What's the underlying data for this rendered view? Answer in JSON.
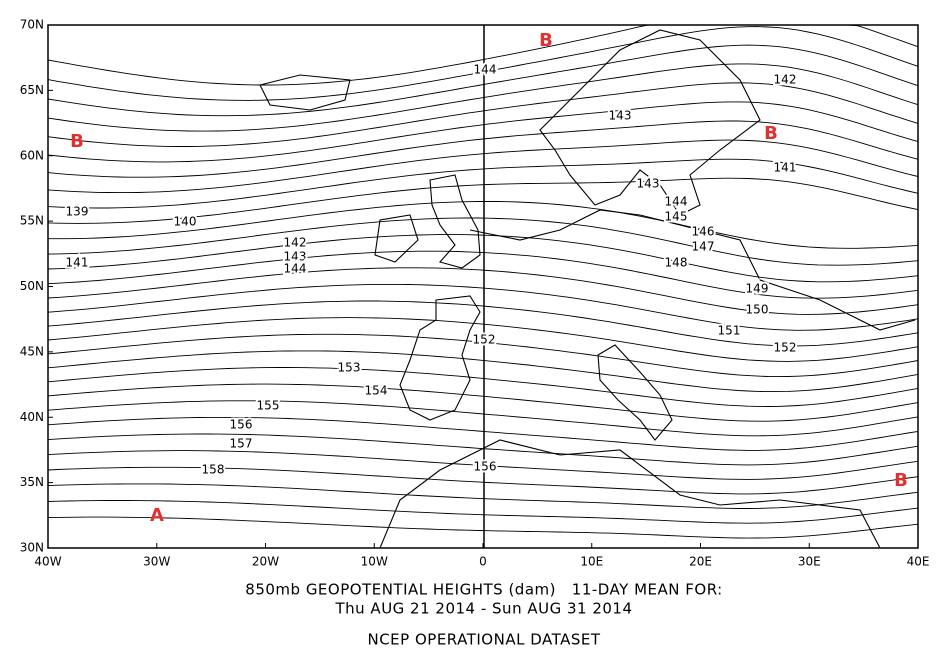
{
  "map": {
    "lat_labels": [
      "70N",
      "65N",
      "60N",
      "55N",
      "50N",
      "45N",
      "40N",
      "35N",
      "30N"
    ],
    "lon_labels": [
      "40W",
      "30W",
      "20W",
      "10W",
      "0",
      "10E",
      "20E",
      "30E",
      "40E"
    ],
    "pressure_labels": [
      "B",
      "B",
      "B",
      "B",
      "A"
    ],
    "contour_labels": [
      "144",
      "143",
      "142",
      "141",
      "143",
      "144",
      "145",
      "146",
      "147",
      "148",
      "149",
      "150",
      "151",
      "152",
      "139",
      "140",
      "141",
      "142",
      "143",
      "144",
      "152",
      "153",
      "154",
      "155",
      "156",
      "157",
      "158",
      "156"
    ],
    "caption": [
      "850mb GEOPOTENTIAL HEIGHTS (dam)   11-DAY MEAN FOR:",
      "Thu AUG 21 2014 - Sun AUG 31 2014",
      "NCEP OPERATIONAL DATASET"
    ]
  }
}
